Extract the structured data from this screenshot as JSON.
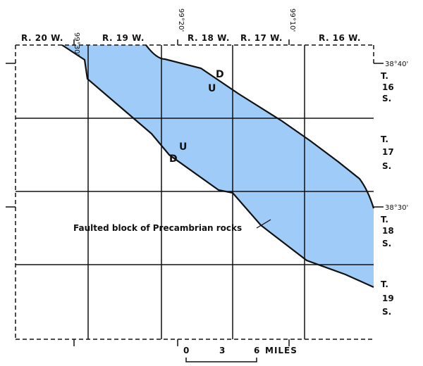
{
  "ranges": [
    "R. 20 W.",
    "R. 19 W.",
    "R. 18 W.",
    "R. 17 W.",
    "R. 16 W."
  ],
  "longitudes": [
    "99°30'",
    "99°20'",
    "99°10'"
  ],
  "latitudes": [
    "38°40'",
    "38°30'"
  ],
  "townships": [
    {
      "t": "T.",
      "num": "16",
      "s": "S."
    },
    {
      "t": "T.",
      "num": "17",
      "s": "S."
    },
    {
      "t": "T.",
      "num": "18",
      "s": "S."
    },
    {
      "t": "T.",
      "num": "19",
      "s": "S."
    }
  ],
  "fault_labels": {
    "upper_down": "D",
    "upper_up": "U",
    "lower_up": "U",
    "lower_down": "D"
  },
  "annotation": "Faulted block of Precambrian rocks",
  "scale_bar": {
    "zero": "0",
    "mid": "3",
    "end": "6",
    "unit": "MILES"
  },
  "colors": {
    "block_fill": "#9fcbf8",
    "line": "#111111"
  }
}
